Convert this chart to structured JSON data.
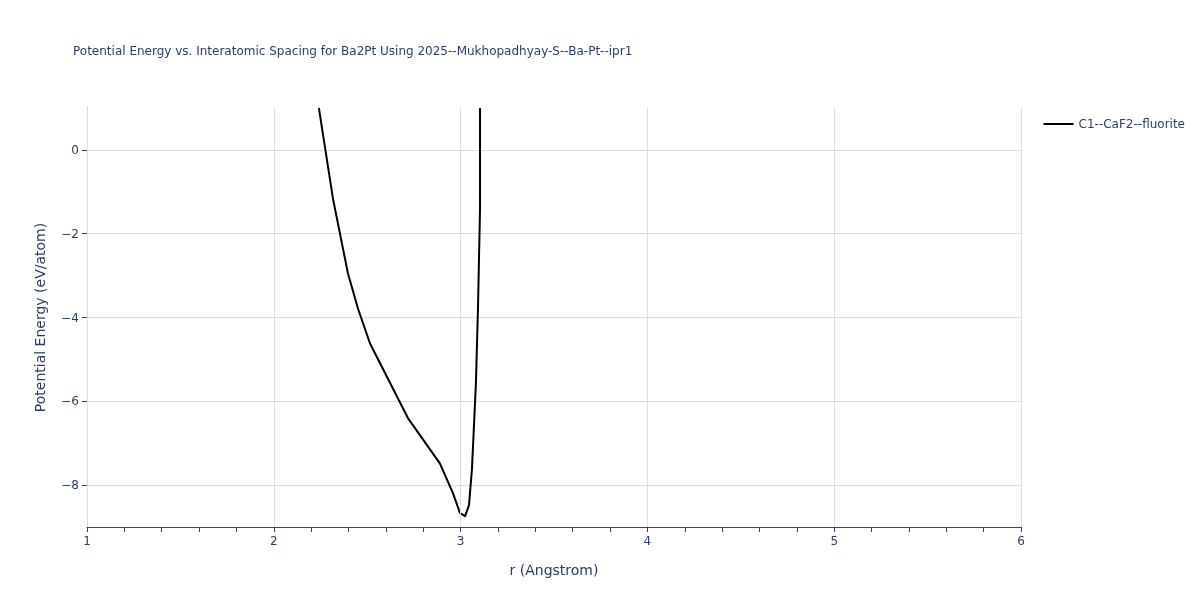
{
  "chart_data": {
    "type": "line",
    "title": "Potential Energy vs. Interatomic Spacing for Ba2Pt Using 2025--Mukhopadhyay-S--Ba-Pt--ipr1",
    "xlabel": "r (Angstrom)",
    "ylabel": "Potential Energy (eV/atom)",
    "series": [
      {
        "name": "C1--CaF2--fluorite",
        "color": "#000000",
        "x": [
          2.242,
          2.317,
          2.397,
          2.451,
          2.515,
          2.718,
          2.889,
          2.959,
          2.997,
          3.024,
          3.045,
          3.061,
          3.082,
          3.093,
          3.104,
          3.104
        ],
        "values": [
          0.98,
          -1.17,
          -2.95,
          -3.79,
          -4.62,
          -6.4,
          -7.48,
          -8.19,
          -8.67,
          -8.74,
          -8.48,
          -7.6,
          -5.57,
          -3.79,
          -1.4,
          0.98
        ]
      }
    ],
    "xlim": [
      1,
      6
    ],
    "xticks": [
      1,
      {
        "value": 1.2,
        "label": null
      },
      {
        "value": 1.4,
        "label": null
      },
      {
        "value": 1.6,
        "label": null
      },
      {
        "value": 1.8,
        "label": null
      },
      2,
      {
        "value": 2.2,
        "label": null
      },
      {
        "value": 2.4,
        "label": null
      },
      {
        "value": 2.6,
        "label": null
      },
      {
        "value": 2.8,
        "label": null
      },
      3,
      {
        "value": 3.2,
        "label": null
      },
      {
        "value": 3.4,
        "label": null
      },
      {
        "value": 3.6,
        "label": null
      },
      {
        "value": 3.8,
        "label": null
      },
      4,
      {
        "value": 4.2,
        "label": null
      },
      {
        "value": 4.4,
        "label": null
      },
      {
        "value": 4.6,
        "label": null
      },
      {
        "value": 4.8,
        "label": null
      },
      5,
      {
        "value": 5.2,
        "label": null
      },
      {
        "value": 5.4,
        "label": null
      },
      {
        "value": 5.6,
        "label": null
      },
      {
        "value": 5.8,
        "label": null
      },
      6
    ],
    "ylim": [
      -9,
      1
    ],
    "yticks": [
      {
        "value": -8,
        "label": "−8"
      },
      {
        "value": -6,
        "label": "−6"
      },
      {
        "value": -4,
        "label": "−4"
      },
      {
        "value": -2,
        "label": "−2"
      },
      0
    ],
    "grid": true,
    "legend": "top right",
    "line_style": "solid",
    "marker": "none"
  }
}
